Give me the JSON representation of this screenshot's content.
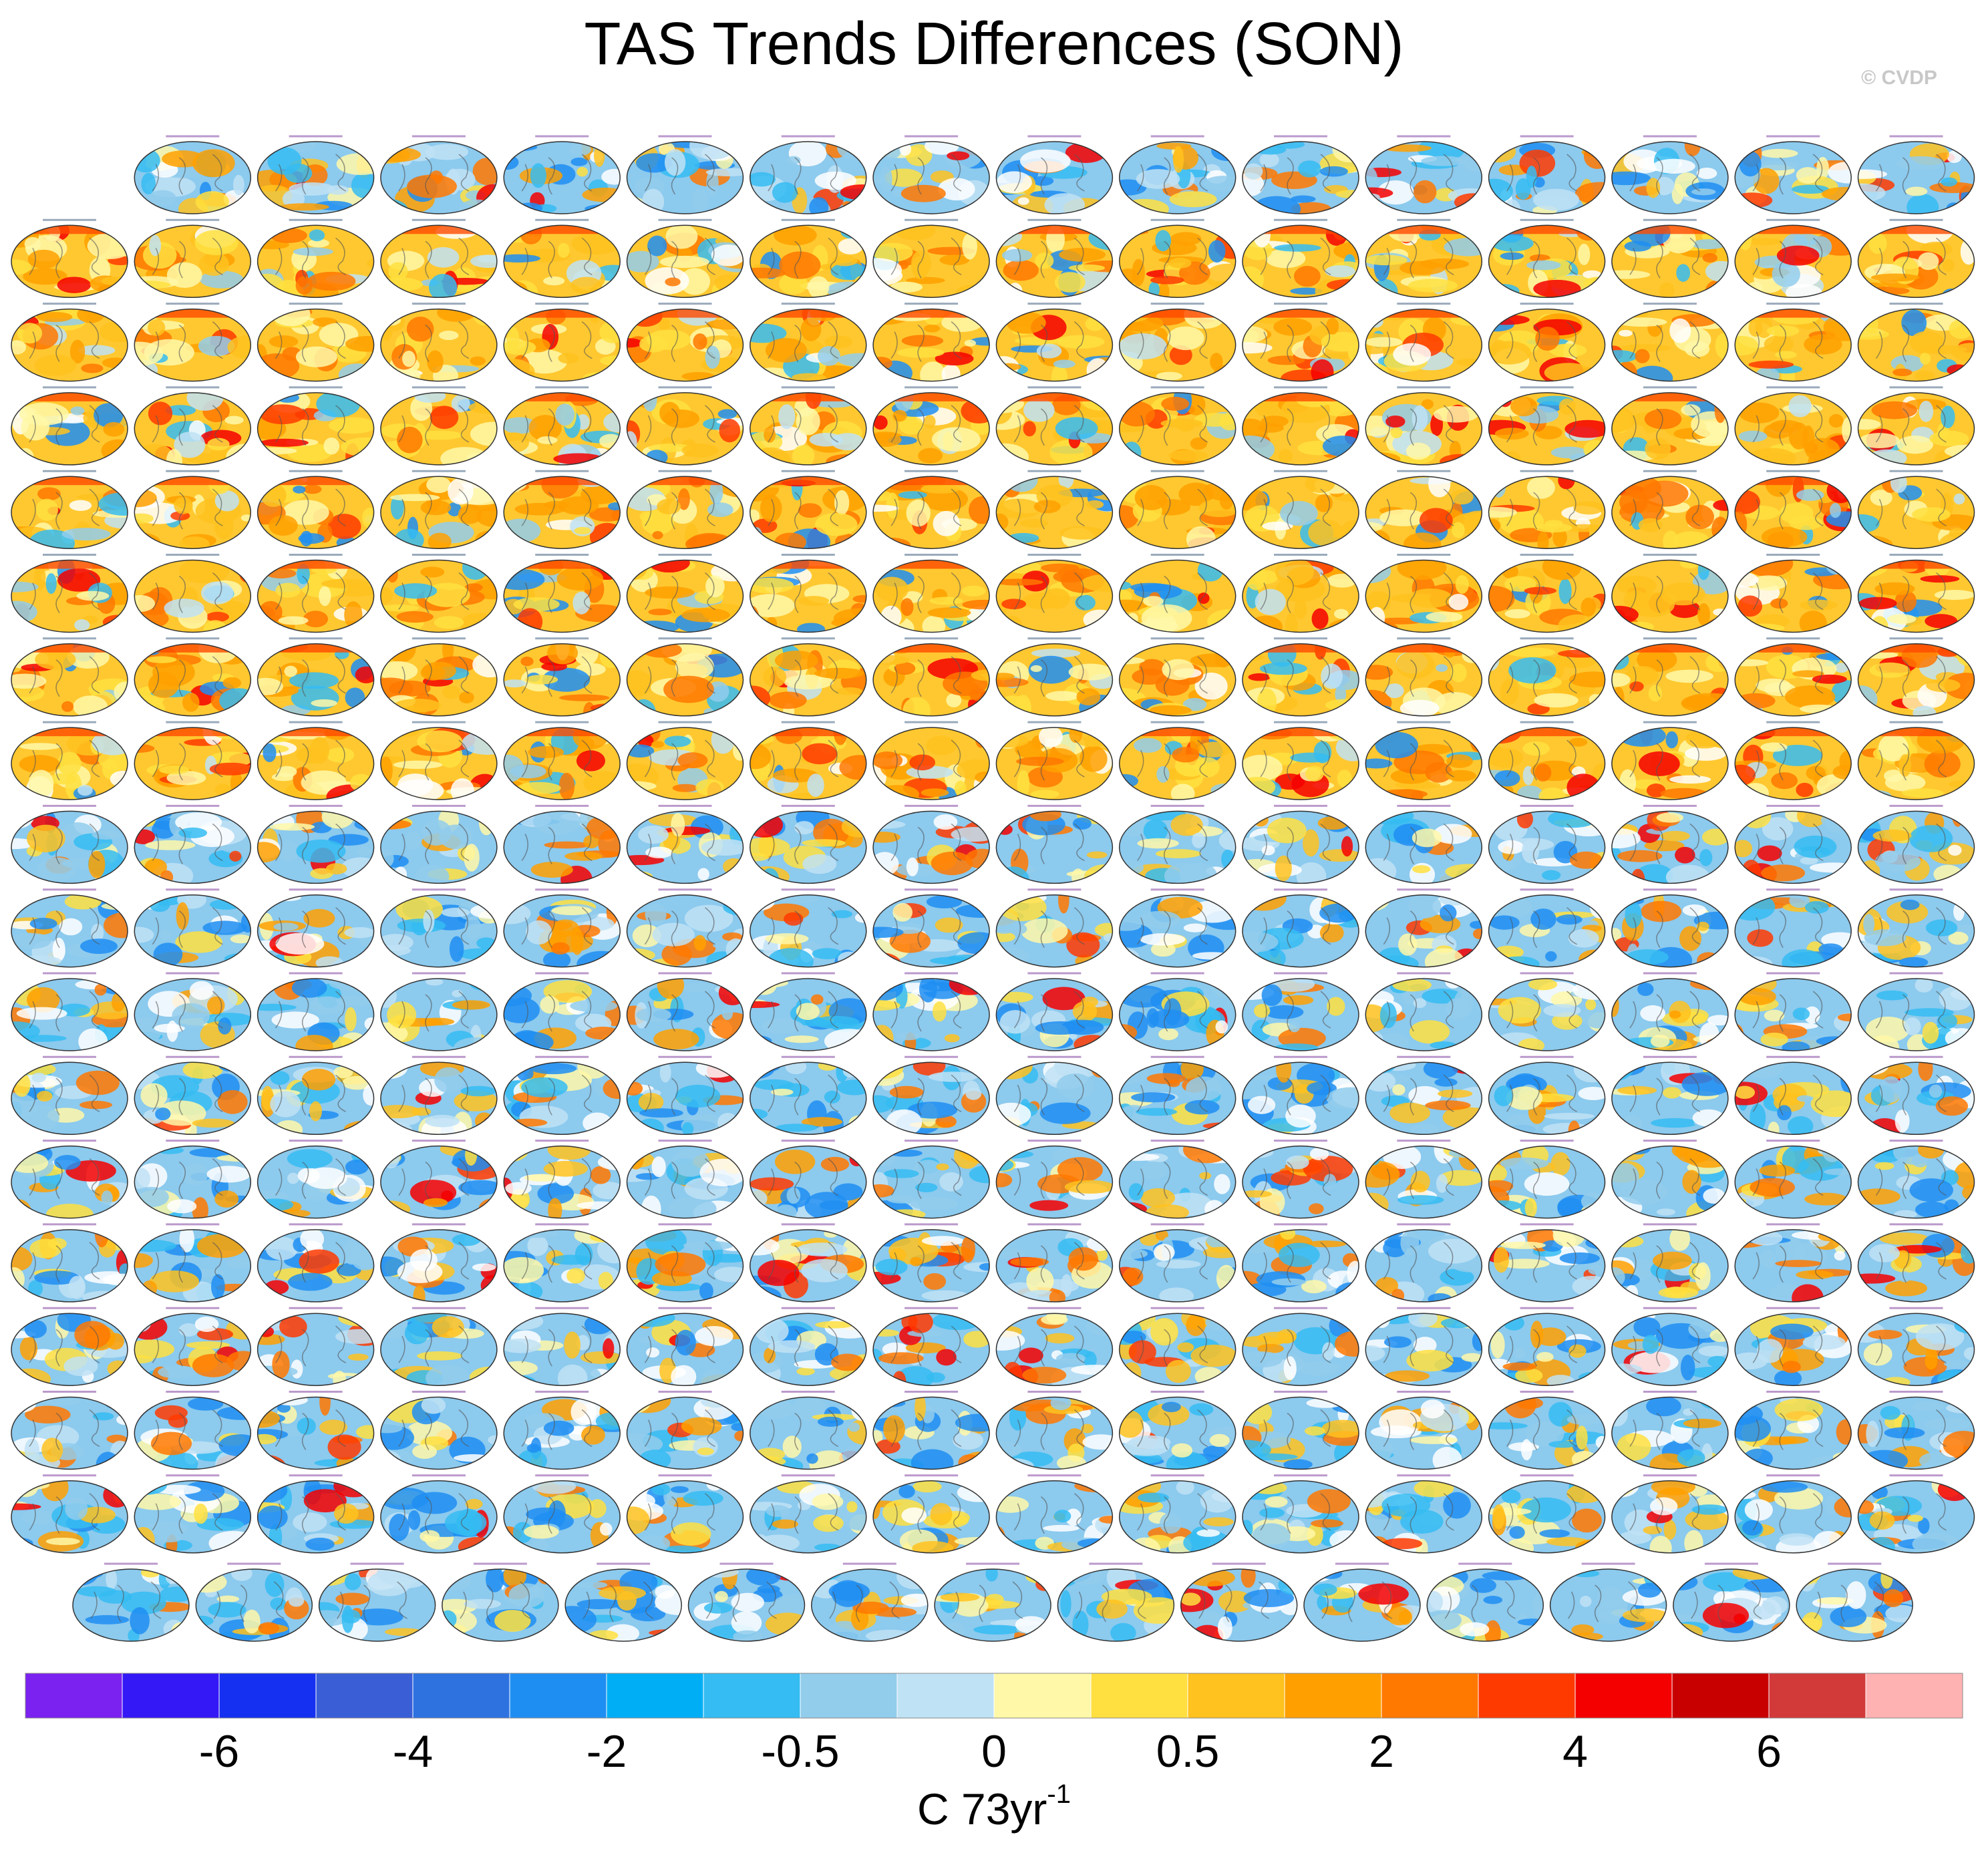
{
  "chart_data": {
    "type": "map-panels",
    "title": "TAS Trends Differences (SON)",
    "credit": "© CVDP",
    "colorbar": {
      "colors": [
        "#7b22f0",
        "#3418f5",
        "#1530f0",
        "#3a5ed6",
        "#2e72e0",
        "#1f8ef2",
        "#00aef6",
        "#35bcf2",
        "#92cdec",
        "#bfe2f4",
        "#fff8a8",
        "#ffe040",
        "#ffc21e",
        "#ffa000",
        "#ff7800",
        "#ff3a00",
        "#f50000",
        "#c80000",
        "#d23a3a",
        "#ffb2b2"
      ],
      "ticks": [
        -6,
        -4,
        -2,
        -0.5,
        0,
        0.5,
        2,
        4,
        6
      ],
      "label": "C 73yr",
      "label_superscript": "-1"
    }
  }
}
